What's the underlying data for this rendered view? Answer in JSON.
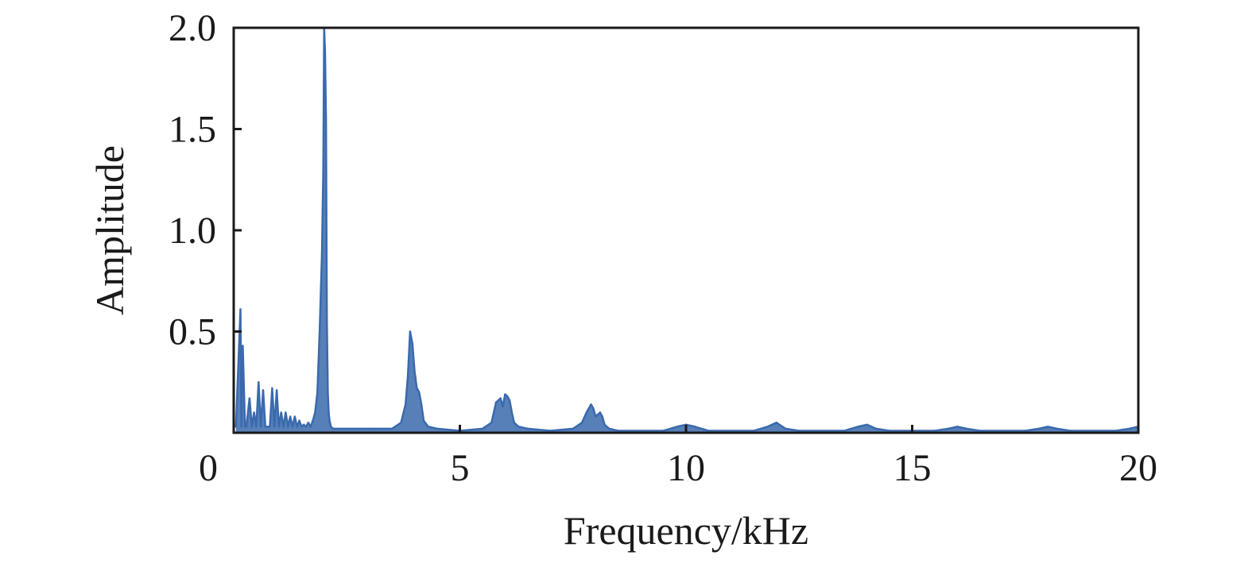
{
  "chart_data": {
    "type": "line",
    "title": "",
    "xlabel": "Frequency/kHz",
    "ylabel": "Amplitude",
    "xlim": [
      0,
      20
    ],
    "ylim": [
      0,
      2.0
    ],
    "x_ticks": [
      0,
      5,
      10,
      15,
      20
    ],
    "x_tick_labels": [
      "0",
      "5",
      "10",
      "15",
      "20"
    ],
    "y_ticks": [
      0.5,
      1.0,
      1.5,
      2.0
    ],
    "y_tick_labels": [
      "0.5",
      "1.0",
      "1.5",
      "2.0"
    ],
    "grid": false,
    "series_color": "#3a6aad",
    "series": [
      {
        "x": [
          0.05,
          0.15,
          0.17,
          0.2,
          0.25,
          0.28,
          0.35,
          0.4,
          0.45,
          0.5,
          0.55,
          0.6,
          0.65,
          0.7,
          0.75,
          0.8,
          0.85,
          0.9,
          0.95,
          1.0,
          1.05,
          1.1,
          1.15,
          1.2,
          1.25,
          1.3,
          1.35,
          1.4,
          1.45,
          1.5,
          1.55,
          1.6,
          1.65,
          1.7,
          1.75,
          1.8,
          1.85,
          1.9,
          1.95,
          1.98,
          2.0,
          2.02,
          2.04,
          2.06,
          2.08,
          2.1,
          2.12,
          2.15,
          2.2,
          2.3,
          2.5,
          3.0,
          3.5,
          3.7,
          3.8,
          3.85,
          3.9,
          3.95,
          4.0,
          4.05,
          4.1,
          4.15,
          4.2,
          4.3,
          4.5,
          5.0,
          5.5,
          5.7,
          5.8,
          5.9,
          5.95,
          6.0,
          6.05,
          6.1,
          6.15,
          6.2,
          6.3,
          6.5,
          7.0,
          7.5,
          7.7,
          7.8,
          7.9,
          7.95,
          8.0,
          8.1,
          8.15,
          8.2,
          8.3,
          8.5,
          9.0,
          9.5,
          9.8,
          10.0,
          10.2,
          10.5,
          11.0,
          11.5,
          11.8,
          12.0,
          12.2,
          12.5,
          13.0,
          13.5,
          13.8,
          14.0,
          14.2,
          14.5,
          15.0,
          15.5,
          15.8,
          16.0,
          16.2,
          16.5,
          17.0,
          17.5,
          17.8,
          18.0,
          18.2,
          18.5,
          19.0,
          19.5,
          19.8,
          20.0
        ],
        "y": [
          0.03,
          0.61,
          0.03,
          0.43,
          0.03,
          0.03,
          0.17,
          0.03,
          0.1,
          0.03,
          0.25,
          0.03,
          0.21,
          0.03,
          0.03,
          0.03,
          0.22,
          0.03,
          0.21,
          0.03,
          0.1,
          0.03,
          0.1,
          0.03,
          0.08,
          0.03,
          0.08,
          0.03,
          0.06,
          0.03,
          0.04,
          0.03,
          0.05,
          0.03,
          0.06,
          0.1,
          0.2,
          0.5,
          0.88,
          1.3,
          2.0,
          1.88,
          1.55,
          0.55,
          0.2,
          0.1,
          0.06,
          0.03,
          0.02,
          0.02,
          0.02,
          0.02,
          0.02,
          0.05,
          0.14,
          0.28,
          0.5,
          0.44,
          0.3,
          0.22,
          0.2,
          0.14,
          0.06,
          0.03,
          0.02,
          0.01,
          0.02,
          0.05,
          0.15,
          0.17,
          0.13,
          0.19,
          0.18,
          0.16,
          0.1,
          0.05,
          0.03,
          0.02,
          0.01,
          0.02,
          0.05,
          0.1,
          0.14,
          0.12,
          0.08,
          0.1,
          0.08,
          0.04,
          0.02,
          0.01,
          0.01,
          0.01,
          0.03,
          0.04,
          0.03,
          0.01,
          0.01,
          0.01,
          0.03,
          0.05,
          0.02,
          0.01,
          0.01,
          0.01,
          0.03,
          0.04,
          0.02,
          0.01,
          0.01,
          0.01,
          0.02,
          0.03,
          0.02,
          0.01,
          0.01,
          0.01,
          0.02,
          0.03,
          0.02,
          0.01,
          0.01,
          0.01,
          0.02,
          0.03
        ]
      }
    ]
  }
}
